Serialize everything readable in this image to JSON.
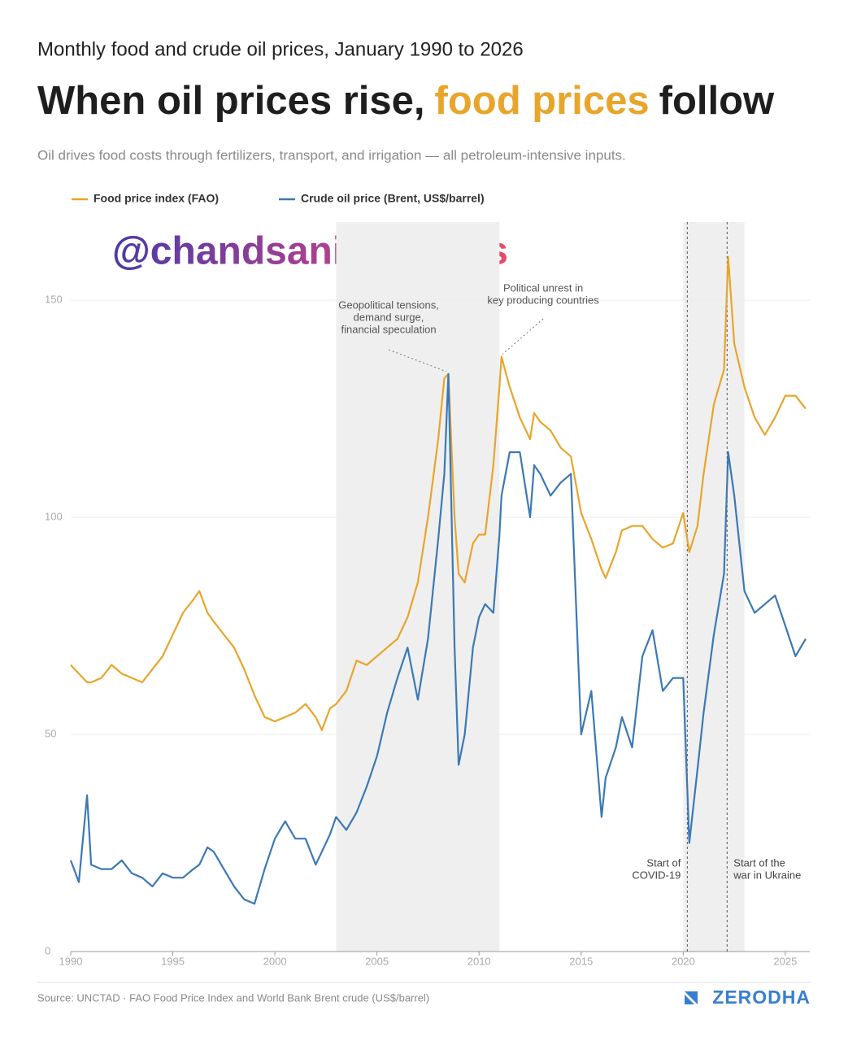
{
  "chart_data": {
    "type": "line",
    "supertitle": "Monthly food and crude oil prices, January 1990 to 2026",
    "title": [
      "When oil prices rise,",
      "food prices",
      "follow"
    ],
    "subtitle": "Oil drives food costs through fertilizers, transport, and irrigation — all petroleum-intensive inputs.",
    "watermark": "@chandsanieh_news",
    "source": "Source: UNCTAD · FAO Food Price Index and World Bank Brent crude (US$/barrel)",
    "logo": "ZERODHA",
    "x": [
      1990,
      1990.4,
      1990.8,
      1991,
      1991.5,
      1992,
      1992.5,
      1993,
      1993.5,
      1994,
      1994.5,
      1995,
      1995.5,
      1996,
      1996.3,
      1996.7,
      1997,
      1997.5,
      1998,
      1998.5,
      1999,
      1999.5,
      2000,
      2000.5,
      2001,
      2001.5,
      2002,
      2002.3,
      2002.7,
      2003,
      2003.5,
      2004,
      2004.5,
      2005,
      2005.5,
      2006,
      2006.5,
      2007,
      2007.5,
      2008,
      2008.3,
      2008.5,
      2008.8,
      2009,
      2009.3,
      2009.7,
      2010,
      2010.3,
      2010.7,
      2011,
      2011.1,
      2011.5,
      2012,
      2012.5,
      2012.7,
      2013,
      2013.5,
      2014,
      2014.5,
      2015,
      2015.5,
      2016,
      2016.2,
      2016.7,
      2017,
      2017.5,
      2018,
      2018.5,
      2019,
      2019.5,
      2020,
      2020.3,
      2020.7,
      2021,
      2021.5,
      2022,
      2022.2,
      2022.5,
      2023,
      2023.5,
      2024,
      2024.5,
      2025,
      2025.5,
      2026
    ],
    "series": [
      {
        "name": "Food price index (FAO)",
        "color": "#e8a52b",
        "values": [
          66,
          64,
          62,
          62,
          63,
          66,
          64,
          63,
          62,
          65,
          68,
          73,
          78,
          81,
          83,
          78,
          76,
          73,
          70,
          65,
          59,
          54,
          53,
          54,
          55,
          57,
          54,
          51,
          56,
          57,
          60,
          67,
          66,
          68,
          70,
          72,
          77,
          85,
          100,
          118,
          132,
          133,
          100,
          87,
          85,
          94,
          96,
          96,
          112,
          130,
          137,
          130,
          123,
          118,
          124,
          122,
          120,
          116,
          114,
          101,
          95,
          88,
          86,
          92,
          97,
          98,
          98,
          95,
          93,
          94,
          101,
          92,
          98,
          110,
          126,
          134,
          160,
          140,
          130,
          123,
          119,
          123,
          128,
          128,
          125
        ]
      },
      {
        "name": "Crude oil price (Brent, US$/barrel)",
        "color": "#3c78b5",
        "values": [
          21,
          16,
          36,
          20,
          19,
          19,
          21,
          18,
          17,
          15,
          18,
          17,
          17,
          19,
          20,
          24,
          23,
          19,
          15,
          12,
          11,
          19,
          26,
          30,
          26,
          26,
          20,
          23,
          27,
          31,
          28,
          32,
          38,
          45,
          55,
          63,
          70,
          58,
          72,
          95,
          110,
          133,
          70,
          43,
          50,
          70,
          77,
          80,
          78,
          96,
          105,
          115,
          115,
          100,
          112,
          110,
          105,
          108,
          110,
          50,
          60,
          31,
          40,
          47,
          54,
          47,
          68,
          74,
          60,
          63,
          63,
          25,
          42,
          55,
          73,
          87,
          115,
          105,
          83,
          78,
          80,
          82,
          75,
          68,
          72
        ]
      }
    ],
    "xlim": [
      1990,
      2026.2
    ],
    "xticks": [
      1990,
      1995,
      2000,
      2005,
      2010,
      2015,
      2020,
      2025
    ],
    "ylim": [
      0,
      165
    ],
    "yticks": [
      0,
      50,
      100,
      150
    ],
    "grid": true,
    "shaded_ranges": [
      [
        2003,
        2011
      ],
      [
        2020,
        2023
      ]
    ],
    "events": [
      {
        "x": 2020.2,
        "label": [
          "Start of",
          "COVID-19"
        ]
      },
      {
        "x": 2022.15,
        "label": [
          "Start of the",
          "war in Ukraine"
        ]
      }
    ],
    "annotations": [
      {
        "x": 2008.4,
        "y": 133,
        "label": [
          "Geopolitical tensions,",
          "demand surge,",
          "financial speculation"
        ]
      },
      {
        "x": 2011.15,
        "y": 137,
        "label": [
          "Political unrest in",
          "key producing countries"
        ]
      }
    ]
  }
}
